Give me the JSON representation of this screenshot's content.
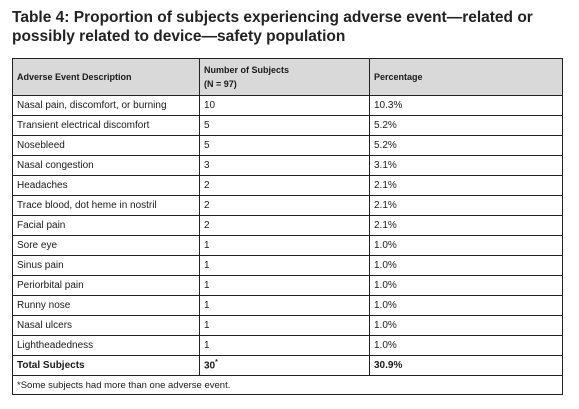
{
  "title": [
    "Table 4: Proportion of subjects experiencing adverse event—related or",
    "possibly related to device—safety population"
  ],
  "table": {
    "header": {
      "description": "Adverse Event Description",
      "count": [
        "Number of Subjects",
        "(N = 97)"
      ],
      "percentage": "Percentage"
    },
    "rows": [
      [
        "Nasal pain, discomfort, or burning",
        "10",
        "10.3%"
      ],
      [
        "Transient electrical discomfort",
        "5",
        "5.2%"
      ],
      [
        "Nosebleed",
        "5",
        "5.2%"
      ],
      [
        "Nasal congestion",
        "3",
        "3.1%"
      ],
      [
        "Headaches",
        "2",
        "2.1%"
      ],
      [
        "Trace blood, dot heme in nostril",
        "2",
        "2.1%"
      ],
      [
        "Facial pain",
        "2",
        "2.1%"
      ],
      [
        "Sore eye",
        "1",
        "1.0%"
      ],
      [
        "Sinus pain",
        "1",
        "1.0%"
      ],
      [
        "Periorbital pain",
        "1",
        "1.0%"
      ],
      [
        "Runny nose",
        "1",
        "1.0%"
      ],
      [
        "Nasal ulcers",
        "1",
        "1.0%"
      ],
      [
        "Lightheadedness",
        "1",
        "1.0%"
      ]
    ],
    "total": {
      "label": "Total Subjects",
      "count": "30",
      "count_note": "*",
      "percentage": "30.9%"
    },
    "footnote": "*Some subjects had more than one adverse event."
  }
}
